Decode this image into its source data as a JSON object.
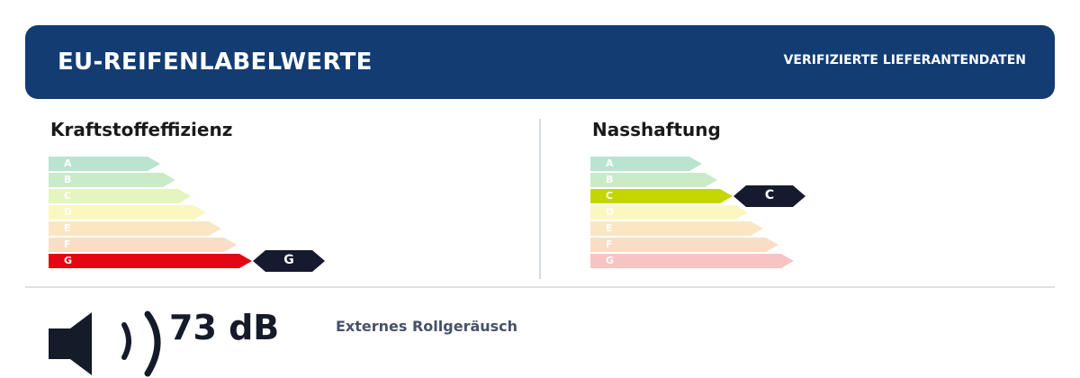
{
  "header": {
    "title": "EU-REIFENLABELWERTE",
    "badge": "VERIFIZIERTE LIEFERANTENDATEN"
  },
  "fuel": {
    "title": "Kraftstoffeffizienz",
    "grades": [
      "A",
      "B",
      "C",
      "D",
      "E",
      "F",
      "G"
    ],
    "selected": "G",
    "selected_color": "#e30613",
    "scale_colors": [
      "#b9e4cf",
      "#c9ebc8",
      "#e5f5bf",
      "#fbf7c0",
      "#fbe6c4",
      "#f9ddc4",
      "#f8c3c3"
    ]
  },
  "wet": {
    "title": "Nasshaftung",
    "grades": [
      "A",
      "B",
      "C",
      "D",
      "E",
      "F",
      "G"
    ],
    "selected": "C",
    "selected_color": "#c4d600",
    "scale_colors": [
      "#b9e4cf",
      "#c9ebc8",
      "#e5f5bf",
      "#fbf7c0",
      "#fbe6c4",
      "#f9ddc4",
      "#f8c3c3"
    ]
  },
  "noise": {
    "value": "73 dB",
    "label": "Externes Rollgeräusch",
    "icon": "speaker-icon"
  }
}
